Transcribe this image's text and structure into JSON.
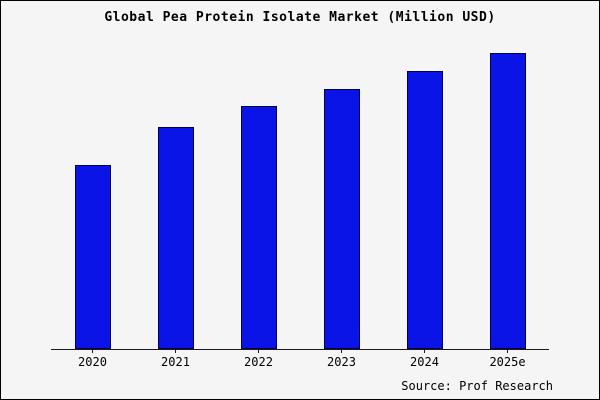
{
  "title": "Global Pea Protein Isolate Market (Million USD)",
  "source_text": "Source: Prof Research",
  "chart_data": {
    "type": "bar",
    "title": "Global Pea Protein Isolate Market (Million USD)",
    "categories": [
      "2020",
      "2021",
      "2022",
      "2023",
      "2024",
      "2025e"
    ],
    "values": [
      62,
      75,
      82,
      88,
      94,
      100
    ],
    "xlabel": "",
    "ylabel": "",
    "ylim": [
      0,
      100
    ],
    "grid": false,
    "legend": "none",
    "bar_color": "#0a14e6",
    "bar_border_color": "#00004d",
    "note": "No y-axis scale shown; values are relative estimates with tallest bar (2025e) = 100"
  }
}
